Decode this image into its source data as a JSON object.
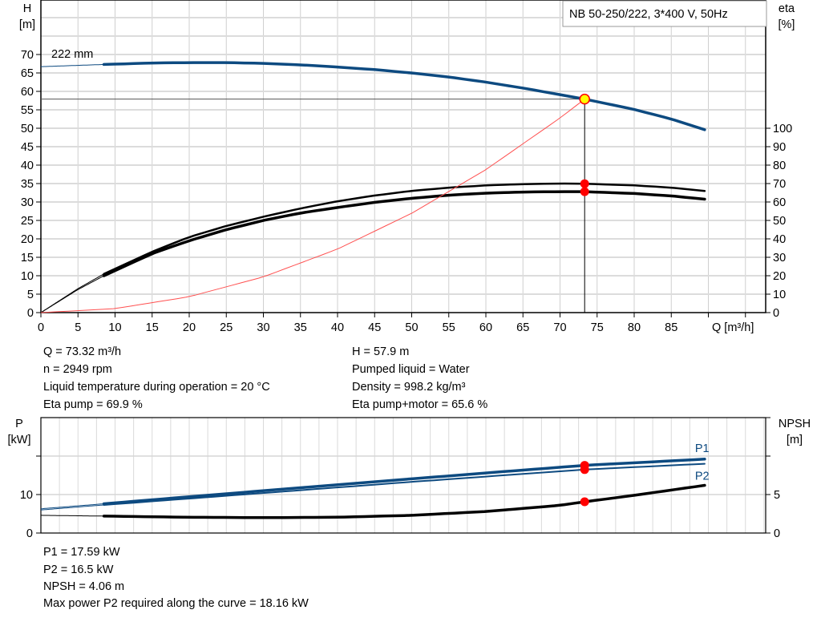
{
  "chart_data": [
    {
      "type": "line",
      "title": "NB 50-250/222, 3*400 V, 50Hz",
      "xlabel": "Q [m³/h]",
      "ylabel": "H\n[m]",
      "ylabel_right": "eta\n[%]",
      "xlim": [
        0,
        97
      ],
      "ylim": [
        0,
        85
      ],
      "ylim_right": [
        0,
        170
      ],
      "x_ticks": [
        0,
        5,
        10,
        15,
        20,
        25,
        30,
        35,
        40,
        45,
        50,
        55,
        60,
        65,
        70,
        75,
        80,
        85
      ],
      "y_ticks": [
        0,
        5,
        10,
        15,
        20,
        25,
        30,
        35,
        40,
        45,
        50,
        55,
        60,
        65,
        70
      ],
      "y_ticks_right": [
        0,
        10,
        20,
        30,
        40,
        50,
        60,
        70,
        80,
        90,
        100
      ],
      "grid": true,
      "annotation": "222 mm",
      "colors": {
        "head": "#0d4a80",
        "eta": "#000000",
        "system": "#ff5050",
        "duty_point": "#ffff00",
        "markers": "#ff0000"
      },
      "series": [
        {
          "key": "head",
          "axis": "left",
          "x": [
            0,
            8.5,
            15,
            20,
            25,
            30,
            35,
            40,
            45,
            50,
            55,
            60,
            65,
            70,
            73.32,
            80,
            85,
            89.5
          ],
          "values": [
            66.7,
            67.3,
            67.7,
            67.8,
            67.8,
            67.6,
            67.2,
            66.6,
            65.9,
            65.0,
            63.9,
            62.5,
            60.9,
            59.1,
            57.9,
            55.1,
            52.5,
            49.6
          ]
        },
        {
          "key": "eta_pump",
          "axis": "right",
          "x": [
            0,
            5,
            8.5,
            15,
            20,
            25,
            30,
            35,
            40,
            45,
            50,
            55,
            60,
            65,
            70,
            73.32,
            80,
            85,
            89.5
          ],
          "values": [
            0,
            13,
            21,
            33,
            41,
            47,
            52,
            56.5,
            60.4,
            63.5,
            66,
            67.8,
            69,
            69.7,
            70,
            69.9,
            69,
            67.8,
            66
          ]
        },
        {
          "key": "eta_pump_motor",
          "axis": "right",
          "x": [
            0,
            5,
            8.5,
            15,
            20,
            25,
            30,
            35,
            40,
            45,
            50,
            55,
            60,
            65,
            70,
            73.32,
            80,
            85,
            89.5
          ],
          "values": [
            0,
            12.5,
            20,
            32,
            39,
            45,
            50,
            54,
            57,
            59.8,
            62,
            63.7,
            64.8,
            65.4,
            65.6,
            65.6,
            64.6,
            63.3,
            61.5
          ]
        },
        {
          "key": "system",
          "axis": "left",
          "x": [
            0,
            10,
            20,
            30,
            40,
            50,
            60,
            70,
            73.32
          ],
          "values": [
            0,
            1.08,
            4.31,
            9.69,
            17.23,
            26.93,
            38.78,
            52.78,
            57.9
          ]
        }
      ],
      "duty_point": {
        "Q": 73.32,
        "H": 57.9,
        "eta_pump": 69.9,
        "eta_pump_motor": 65.6
      }
    },
    {
      "type": "line",
      "ylabel": "P\n[kW]",
      "ylabel_right": "NPSH\n[m]",
      "xlim": [
        0,
        97
      ],
      "ylim": [
        0,
        30
      ],
      "ylim_right": [
        0,
        15
      ],
      "y_ticks": [
        0,
        10
      ],
      "y_ticks_right": [
        0,
        5
      ],
      "grid": true,
      "colors": {
        "P1": "#0d4a80",
        "P2": "#0d4a80",
        "NPSH": "#000000",
        "markers": "#ff0000"
      },
      "series": [
        {
          "name": "P1",
          "axis": "left",
          "x": [
            0,
            8.5,
            30,
            50,
            73.32,
            89.5
          ],
          "values": [
            6.3,
            7.6,
            11.0,
            14.1,
            17.59,
            19.2
          ]
        },
        {
          "name": "P2",
          "axis": "left",
          "x": [
            0,
            8.5,
            30,
            50,
            73.32,
            89.5
          ],
          "values": [
            6.0,
            7.3,
            10.4,
            13.3,
            16.5,
            18.0
          ]
        },
        {
          "key": "NPSH",
          "axis": "right",
          "x": [
            0,
            8.5,
            20,
            30,
            40,
            50,
            60,
            70,
            73.32,
            80,
            89.5
          ],
          "values": [
            2.3,
            2.2,
            2.05,
            2.0,
            2.05,
            2.3,
            2.8,
            3.6,
            4.06,
            4.9,
            6.2
          ]
        }
      ],
      "duty_point": {
        "Q": 73.32,
        "P1": 17.59,
        "P2": 16.5,
        "NPSH": 4.06
      }
    }
  ],
  "readout": {
    "q": "Q = 73.32 m³/h",
    "n": "n = 2949 rpm",
    "temp": "Liquid temperature during operation = 20 °C",
    "eta_pump": "Eta pump = 69.9 %",
    "h": "H = 57.9 m",
    "liquid": "Pumped liquid = Water",
    "density": "Density = 998.2 kg/m³",
    "eta_total": "Eta pump+motor = 65.6 %"
  },
  "power_readout": {
    "p1": "P1 = 17.59 kW",
    "p2": "P2 = 16.5 kW",
    "npsh": "NPSH = 4.06 m",
    "max_p2": "Max power P2 required along the curve = 18.16 kW"
  }
}
